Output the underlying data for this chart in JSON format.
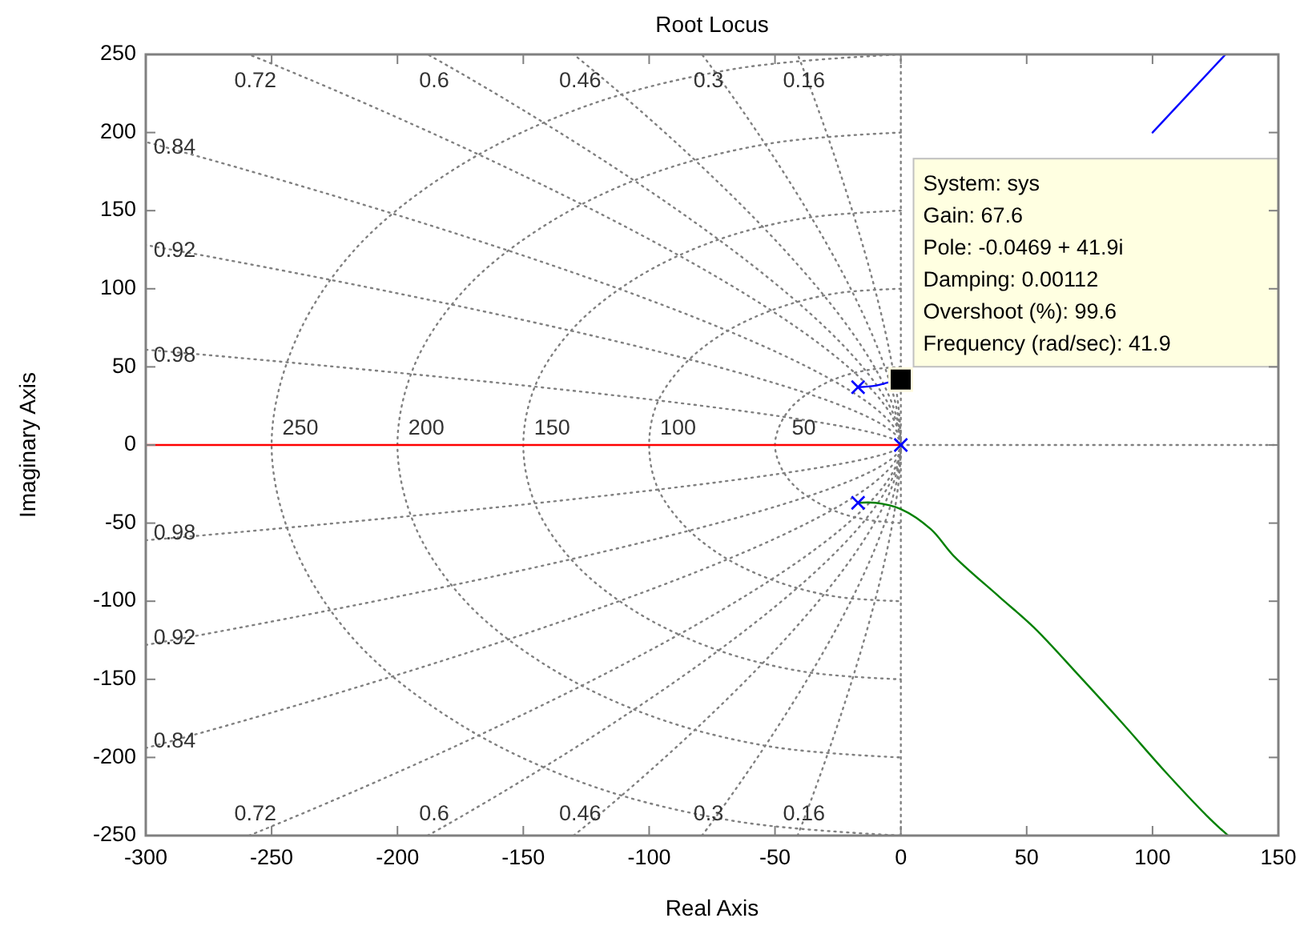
{
  "chart_data": {
    "type": "line",
    "title": "Root Locus",
    "xlabel": "Real Axis",
    "ylabel": "Imaginary Axis",
    "xlim": [
      -300,
      150
    ],
    "xticks": [
      -300,
      -250,
      -200,
      -150,
      -100,
      -50,
      0,
      50,
      100,
      150
    ],
    "ylim": [
      -250,
      250
    ],
    "yticks": [
      -250,
      -200,
      -150,
      -100,
      -50,
      0,
      50,
      100,
      150,
      200,
      250
    ],
    "series": [
      {
        "color": "#808080",
        "line_style": "dotted",
        "x": [
          0,
          150
        ],
        "values": [
          0,
          0
        ]
      },
      {
        "color": "#808080",
        "line_style": "dotted",
        "x": [
          0,
          0
        ],
        "values": [
          -250,
          250
        ]
      },
      {
        "color": "#808080",
        "line_style": "dotted",
        "x": [
          -41,
          0,
          -41
        ],
        "values": [
          -250,
          0,
          250
        ]
      },
      {
        "color": "#808080",
        "line_style": "dotted",
        "x": [
          -79,
          0,
          -79
        ],
        "values": [
          -250,
          0,
          250
        ]
      },
      {
        "color": "#808080",
        "line_style": "dotted",
        "x": [
          -130,
          0,
          -130
        ],
        "values": [
          -250,
          0,
          250
        ]
      },
      {
        "color": "#808080",
        "line_style": "dotted",
        "x": [
          -188,
          0,
          -188
        ],
        "values": [
          -250,
          0,
          250
        ]
      },
      {
        "color": "#808080",
        "line_style": "dotted",
        "x": [
          -259,
          0,
          -259
        ],
        "values": [
          -250,
          0,
          250
        ]
      },
      {
        "color": "#808080",
        "line_style": "dotted",
        "x": [
          -300,
          0,
          -300
        ],
        "values": [
          -194,
          0,
          194
        ]
      },
      {
        "color": "#808080",
        "line_style": "dotted",
        "x": [
          -300,
          0,
          -300
        ],
        "values": [
          -128,
          0,
          128
        ]
      },
      {
        "color": "#808080",
        "line_style": "dotted",
        "x": [
          -300,
          0,
          -300
        ],
        "values": [
          -61,
          0,
          61
        ]
      },
      {
        "color": "#808080",
        "line_style": "dotted",
        "x": [
          0,
          -13,
          -25,
          -35,
          -43,
          -48,
          -50,
          -48,
          -43,
          -35,
          -25,
          -13,
          0
        ],
        "values": [
          50,
          48,
          43,
          35,
          25,
          13,
          0,
          -13,
          -25,
          -35,
          -43,
          -48,
          -50
        ]
      },
      {
        "color": "#808080",
        "line_style": "dotted",
        "x": [
          0,
          -26,
          -50,
          -71,
          -87,
          -97,
          -100,
          -97,
          -87,
          -71,
          -50,
          -26,
          0
        ],
        "values": [
          100,
          97,
          87,
          71,
          50,
          26,
          0,
          -26,
          -50,
          -71,
          -87,
          -97,
          -100
        ]
      },
      {
        "color": "#808080",
        "line_style": "dotted",
        "x": [
          0,
          -39,
          -75,
          -106,
          -130,
          -145,
          -150,
          -145,
          -130,
          -106,
          -75,
          -39,
          0
        ],
        "values": [
          150,
          145,
          130,
          106,
          75,
          39,
          0,
          -39,
          -75,
          -106,
          -130,
          -145,
          -150
        ]
      },
      {
        "color": "#808080",
        "line_style": "dotted",
        "x": [
          0,
          -52,
          -100,
          -141,
          -173,
          -193,
          -200,
          -193,
          -173,
          -141,
          -100,
          -52,
          0
        ],
        "values": [
          200,
          193,
          173,
          141,
          100,
          52,
          0,
          -52,
          -100,
          -141,
          -173,
          -193,
          -200
        ]
      },
      {
        "color": "#808080",
        "line_style": "dotted",
        "x": [
          0,
          -65,
          -125,
          -177,
          -217,
          -241,
          -250,
          -241,
          -217,
          -177,
          -125,
          -65,
          0
        ],
        "values": [
          250,
          241,
          217,
          177,
          125,
          65,
          0,
          -65,
          -125,
          -177,
          -217,
          -241,
          -250
        ]
      },
      {
        "color": "#ff0000",
        "line_style": "solid",
        "x": [
          0,
          -300
        ],
        "values": [
          0,
          0
        ]
      },
      {
        "color": "#008000",
        "line_style": "solid",
        "x": [
          -17,
          -10,
          0,
          12,
          21,
          39,
          53,
          71,
          88,
          105,
          122,
          130
        ],
        "values": [
          -37,
          -37,
          -41,
          -54,
          -71,
          -97,
          -117,
          -148,
          -178,
          -209,
          -238,
          -250
        ]
      },
      {
        "color": "#0000ff",
        "line_style": "solid",
        "x": [
          -17,
          -10,
          -5,
          -0.0469,
          50,
          100,
          129
        ],
        "values": [
          37,
          38,
          40,
          41.9,
          null,
          200,
          250
        ]
      },
      {
        "type": "scatter",
        "color": "#0000ff",
        "marker": "cross",
        "x": [
          -17,
          -17,
          0
        ],
        "values": [
          37,
          -37,
          0
        ]
      },
      {
        "type": "scatter",
        "color": "#000000",
        "marker": "square",
        "x": [
          -0.0469
        ],
        "values": [
          41.9
        ]
      }
    ],
    "annotations": [
      {
        "text": "0.72",
        "x": -259,
        "y": 250
      },
      {
        "text": "0.6",
        "x": -188,
        "y": 250
      },
      {
        "text": "0.46",
        "x": -130,
        "y": 250
      },
      {
        "text": "0.3",
        "x": -79,
        "y": 250
      },
      {
        "text": "0.16",
        "x": -41,
        "y": 250
      },
      {
        "text": "0.72",
        "x": -259,
        "y": -250
      },
      {
        "text": "0.6",
        "x": -188,
        "y": -250
      },
      {
        "text": "0.46",
        "x": -130,
        "y": -250
      },
      {
        "text": "0.3",
        "x": -79,
        "y": -250
      },
      {
        "text": "0.16",
        "x": -41,
        "y": -250
      },
      {
        "text": "0.84",
        "x": -300,
        "y": 194
      },
      {
        "text": "0.92",
        "x": -300,
        "y": 128
      },
      {
        "text": "0.98",
        "x": -300,
        "y": 61
      },
      {
        "text": "0.98",
        "x": -300,
        "y": -61
      },
      {
        "text": "0.92",
        "x": -300,
        "y": -128
      },
      {
        "text": "0.84",
        "x": -300,
        "y": -194
      },
      {
        "text": "250",
        "x": -250,
        "y": 0
      },
      {
        "text": "200",
        "x": -200,
        "y": 0
      },
      {
        "text": "150",
        "x": -150,
        "y": 0
      },
      {
        "text": "100",
        "x": -100,
        "y": 0
      },
      {
        "text": "50",
        "x": -50,
        "y": 0
      },
      "System: sys\nGain: 67.6\nPole: -0.0469 + 41.9i\nDamping: 0.00112\nOvershoot (%): 99.6\nFrequency (rad/sec): 41.9"
    ]
  }
}
